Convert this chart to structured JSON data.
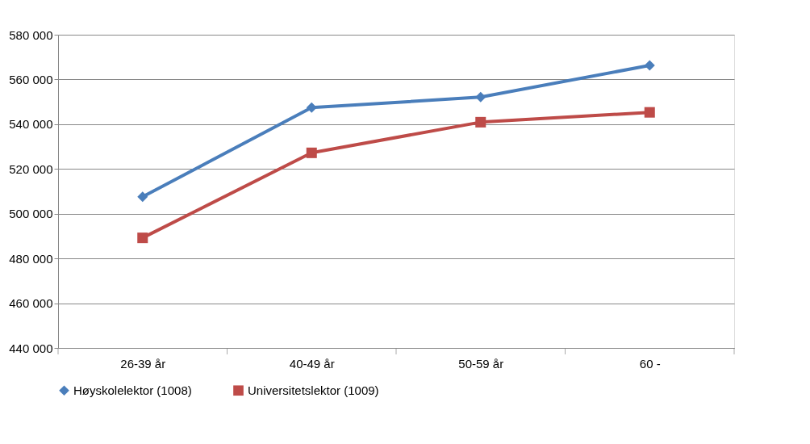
{
  "chart_data": {
    "type": "line",
    "categories": [
      "26-39 år",
      "40-49 år",
      "50-59 år",
      "60 -"
    ],
    "series": [
      {
        "name": "Høyskolelektor (1008)",
        "color": "#4a7ebb",
        "marker": "diamond",
        "values": [
          507600,
          547400,
          552100,
          566300
        ]
      },
      {
        "name": "Universitetslektor (1009)",
        "color": "#be4b48",
        "marker": "square",
        "values": [
          489200,
          527200,
          540900,
          545300
        ]
      }
    ],
    "ylim": [
      440000,
      580000
    ],
    "yticks": [
      {
        "value": 440000,
        "label": "440 000"
      },
      {
        "value": 460000,
        "label": "460 000"
      },
      {
        "value": 480000,
        "label": "480 000"
      },
      {
        "value": 500000,
        "label": "500 000"
      },
      {
        "value": 520000,
        "label": "520 000"
      },
      {
        "value": 540000,
        "label": "540 000"
      },
      {
        "value": 560000,
        "label": "560 000"
      },
      {
        "value": 580000,
        "label": "580 000"
      }
    ],
    "grid": "y",
    "legend": "bottom",
    "line_style": "solid"
  }
}
